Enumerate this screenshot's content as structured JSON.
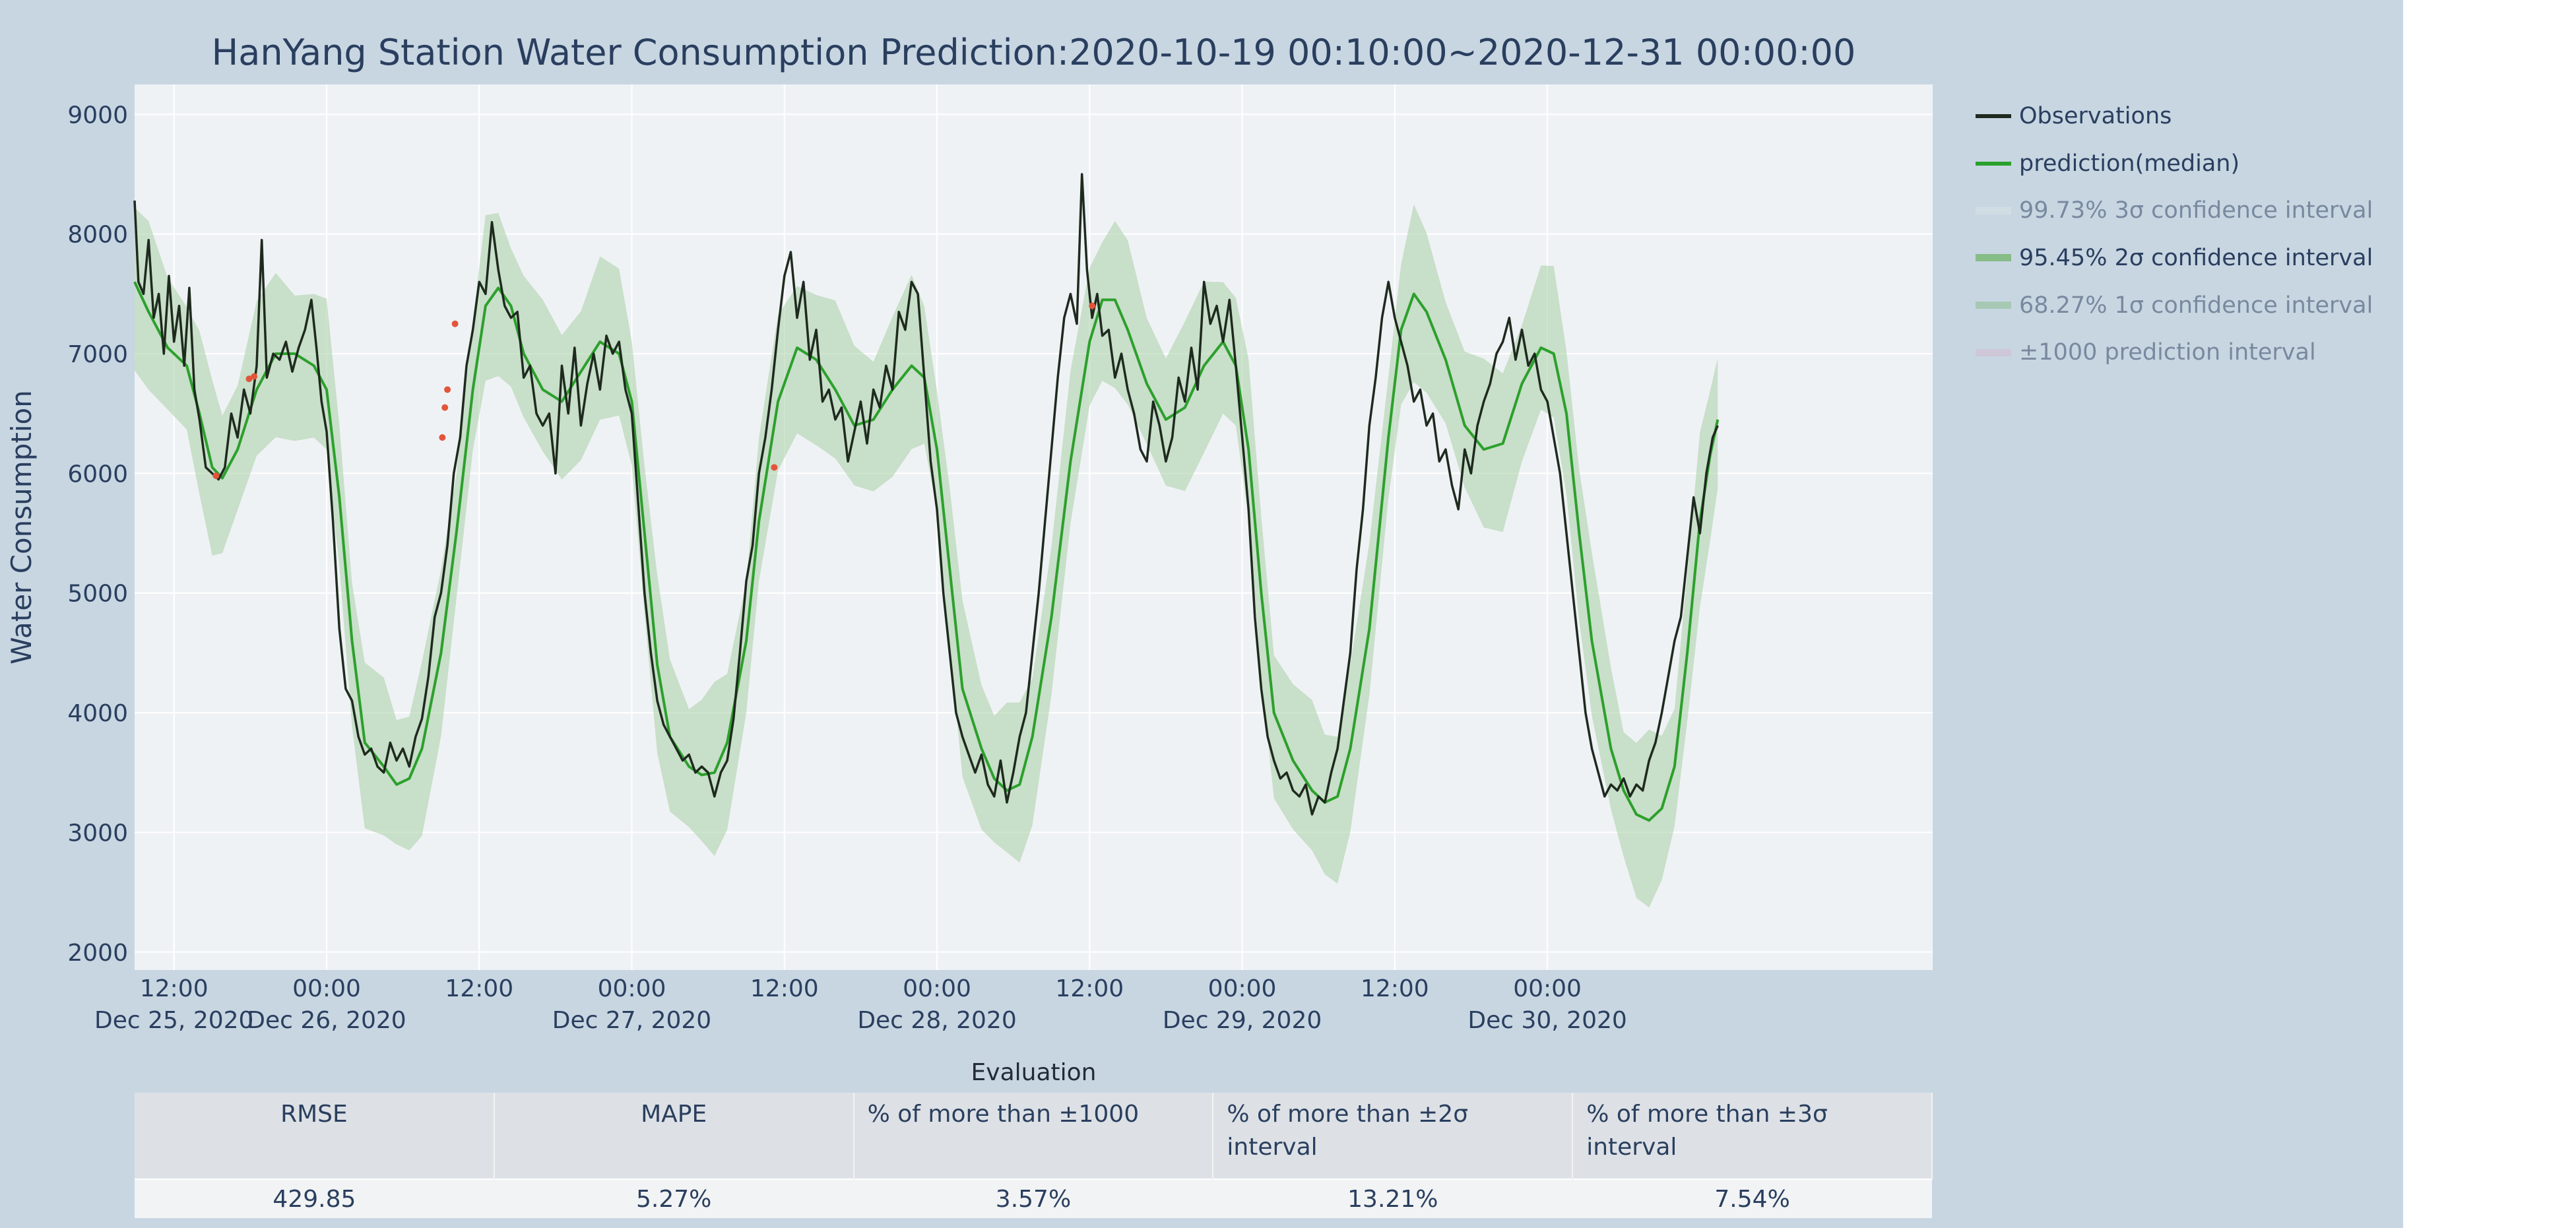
{
  "chart_data": {
    "type": "line",
    "title": "HanYang Station Water Consumption Prediction:2020-10-19 00:10:00~2020-12-31 00:00:00",
    "ylabel": "Water Consumption",
    "xlabel": "",
    "ylim": [
      1850,
      9250
    ],
    "xlim_hours": [
      8.9,
      150.3
    ],
    "grid": true,
    "y_ticks": [
      2000,
      3000,
      4000,
      5000,
      6000,
      7000,
      8000,
      9000
    ],
    "x_ticks": [
      {
        "h": 12,
        "line1": "12:00",
        "line2": "Dec 25, 2020"
      },
      {
        "h": 24,
        "line1": "00:00",
        "line2": "Dec 26, 2020"
      },
      {
        "h": 36,
        "line1": "12:00",
        "line2": ""
      },
      {
        "h": 48,
        "line1": "00:00",
        "line2": "Dec 27, 2020"
      },
      {
        "h": 60,
        "line1": "12:00",
        "line2": ""
      },
      {
        "h": 72,
        "line1": "00:00",
        "line2": "Dec 28, 2020"
      },
      {
        "h": 84,
        "line1": "12:00",
        "line2": ""
      },
      {
        "h": 96,
        "line1": "00:00",
        "line2": "Dec 29, 2020"
      },
      {
        "h": 108,
        "line1": "12:00",
        "line2": ""
      },
      {
        "h": 120,
        "line1": "00:00",
        "line2": "Dec 30, 2020"
      }
    ],
    "x_unit_note": "hours after Dec 25, 2020 00:00",
    "prediction_median": [
      [
        8.9,
        7600
      ],
      [
        10,
        7350
      ],
      [
        11.5,
        7050
      ],
      [
        13,
        6900
      ],
      [
        14,
        6500
      ],
      [
        15,
        6050
      ],
      [
        15.8,
        5960
      ],
      [
        17,
        6200
      ],
      [
        18.5,
        6700
      ],
      [
        20,
        7000
      ],
      [
        21.5,
        7000
      ],
      [
        23,
        6900
      ],
      [
        24,
        6700
      ],
      [
        25,
        5800
      ],
      [
        26,
        4600
      ],
      [
        27,
        3750
      ],
      [
        28.5,
        3550
      ],
      [
        29.5,
        3400
      ],
      [
        30.5,
        3450
      ],
      [
        31.5,
        3700
      ],
      [
        33,
        4500
      ],
      [
        34.2,
        5500
      ],
      [
        35.5,
        6700
      ],
      [
        36.5,
        7400
      ],
      [
        37.5,
        7550
      ],
      [
        38.5,
        7400
      ],
      [
        39.5,
        7000
      ],
      [
        41,
        6700
      ],
      [
        42.5,
        6600
      ],
      [
        44,
        6850
      ],
      [
        45.5,
        7100
      ],
      [
        47,
        7000
      ],
      [
        48,
        6600
      ],
      [
        49,
        5500
      ],
      [
        50,
        4400
      ],
      [
        51,
        3800
      ],
      [
        52.5,
        3550
      ],
      [
        53.5,
        3480
      ],
      [
        54.5,
        3500
      ],
      [
        55.5,
        3750
      ],
      [
        57,
        4600
      ],
      [
        58,
        5600
      ],
      [
        59.5,
        6600
      ],
      [
        61,
        7050
      ],
      [
        62.5,
        6950
      ],
      [
        64,
        6700
      ],
      [
        65.5,
        6400
      ],
      [
        67,
        6450
      ],
      [
        68.5,
        6700
      ],
      [
        70,
        6900
      ],
      [
        71,
        6800
      ],
      [
        72,
        6200
      ],
      [
        73,
        5200
      ],
      [
        74,
        4200
      ],
      [
        75.5,
        3700
      ],
      [
        76.5,
        3450
      ],
      [
        77.5,
        3350
      ],
      [
        78.5,
        3400
      ],
      [
        79.5,
        3800
      ],
      [
        81,
        4800
      ],
      [
        82.5,
        6100
      ],
      [
        84,
        7100
      ],
      [
        85,
        7450
      ],
      [
        86,
        7450
      ],
      [
        87,
        7200
      ],
      [
        88.5,
        6750
      ],
      [
        90,
        6450
      ],
      [
        91.5,
        6550
      ],
      [
        93,
        6900
      ],
      [
        94.5,
        7100
      ],
      [
        95.5,
        6900
      ],
      [
        96.5,
        6200
      ],
      [
        97.5,
        5000
      ],
      [
        98.5,
        4000
      ],
      [
        100,
        3600
      ],
      [
        101.5,
        3350
      ],
      [
        102.5,
        3250
      ],
      [
        103.5,
        3300
      ],
      [
        104.5,
        3700
      ],
      [
        106,
        4700
      ],
      [
        107.5,
        6300
      ],
      [
        108.5,
        7200
      ],
      [
        109.5,
        7500
      ],
      [
        110.5,
        7350
      ],
      [
        112,
        6950
      ],
      [
        113.5,
        6400
      ],
      [
        115,
        6200
      ],
      [
        116.5,
        6250
      ],
      [
        118,
        6750
      ],
      [
        119.5,
        7050
      ],
      [
        120.5,
        7000
      ],
      [
        121.5,
        6500
      ],
      [
        122.5,
        5500
      ],
      [
        123.5,
        4600
      ],
      [
        125,
        3700
      ],
      [
        126,
        3350
      ],
      [
        127,
        3150
      ],
      [
        128,
        3100
      ],
      [
        129,
        3200
      ],
      [
        130,
        3550
      ],
      [
        131,
        4500
      ],
      [
        132,
        5600
      ],
      [
        132.8,
        6150
      ],
      [
        133.4,
        6450
      ]
    ],
    "observations": [
      [
        8.9,
        8280
      ],
      [
        9.2,
        7600
      ],
      [
        9.6,
        7500
      ],
      [
        10,
        7950
      ],
      [
        10.4,
        7300
      ],
      [
        10.8,
        7500
      ],
      [
        11.2,
        7000
      ],
      [
        11.6,
        7650
      ],
      [
        12,
        7100
      ],
      [
        12.4,
        7400
      ],
      [
        12.8,
        6900
      ],
      [
        13.2,
        7550
      ],
      [
        13.6,
        6700
      ],
      [
        14,
        6450
      ],
      [
        14.5,
        6050
      ],
      [
        15,
        6000
      ],
      [
        15.5,
        5950
      ],
      [
        16,
        6050
      ],
      [
        16.5,
        6500
      ],
      [
        17,
        6300
      ],
      [
        17.5,
        6700
      ],
      [
        18,
        6500
      ],
      [
        18.5,
        6900
      ],
      [
        18.9,
        7950
      ],
      [
        19.3,
        6800
      ],
      [
        19.8,
        7000
      ],
      [
        20.3,
        6950
      ],
      [
        20.8,
        7100
      ],
      [
        21.3,
        6850
      ],
      [
        21.8,
        7050
      ],
      [
        22.3,
        7200
      ],
      [
        22.8,
        7450
      ],
      [
        23.2,
        7050
      ],
      [
        23.6,
        6600
      ],
      [
        24,
        6350
      ],
      [
        24.5,
        5600
      ],
      [
        25,
        4700
      ],
      [
        25.5,
        4200
      ],
      [
        26,
        4100
      ],
      [
        26.5,
        3800
      ],
      [
        27,
        3650
      ],
      [
        27.5,
        3700
      ],
      [
        28,
        3550
      ],
      [
        28.5,
        3500
      ],
      [
        29,
        3750
      ],
      [
        29.5,
        3600
      ],
      [
        30,
        3700
      ],
      [
        30.5,
        3550
      ],
      [
        31,
        3800
      ],
      [
        31.5,
        3950
      ],
      [
        32,
        4300
      ],
      [
        32.5,
        4800
      ],
      [
        33,
        5000
      ],
      [
        33.5,
        5400
      ],
      [
        34,
        6000
      ],
      [
        34.5,
        6300
      ],
      [
        35,
        6900
      ],
      [
        35.5,
        7200
      ],
      [
        36,
        7600
      ],
      [
        36.5,
        7500
      ],
      [
        37,
        8100
      ],
      [
        37.5,
        7700
      ],
      [
        38,
        7400
      ],
      [
        38.5,
        7300
      ],
      [
        39,
        7350
      ],
      [
        39.5,
        6800
      ],
      [
        40,
        6900
      ],
      [
        40.5,
        6500
      ],
      [
        41,
        6400
      ],
      [
        41.5,
        6500
      ],
      [
        42,
        6000
      ],
      [
        42.5,
        6900
      ],
      [
        43,
        6500
      ],
      [
        43.5,
        7050
      ],
      [
        44,
        6400
      ],
      [
        44.5,
        6750
      ],
      [
        45,
        7000
      ],
      [
        45.5,
        6700
      ],
      [
        46,
        7150
      ],
      [
        46.5,
        7000
      ],
      [
        47,
        7100
      ],
      [
        47.5,
        6700
      ],
      [
        48,
        6500
      ],
      [
        48.5,
        5750
      ],
      [
        49,
        5000
      ],
      [
        49.5,
        4500
      ],
      [
        50,
        4100
      ],
      [
        50.5,
        3900
      ],
      [
        51,
        3800
      ],
      [
        51.5,
        3700
      ],
      [
        52,
        3600
      ],
      [
        52.5,
        3650
      ],
      [
        53,
        3500
      ],
      [
        53.5,
        3550
      ],
      [
        54,
        3500
      ],
      [
        54.5,
        3300
      ],
      [
        55,
        3500
      ],
      [
        55.5,
        3600
      ],
      [
        56,
        3950
      ],
      [
        56.5,
        4500
      ],
      [
        57,
        5100
      ],
      [
        57.5,
        5400
      ],
      [
        58,
        6000
      ],
      [
        58.5,
        6300
      ],
      [
        59,
        6700
      ],
      [
        59.5,
        7200
      ],
      [
        60,
        7650
      ],
      [
        60.5,
        7850
      ],
      [
        61,
        7300
      ],
      [
        61.5,
        7600
      ],
      [
        62,
        6950
      ],
      [
        62.5,
        7200
      ],
      [
        63,
        6600
      ],
      [
        63.5,
        6700
      ],
      [
        64,
        6450
      ],
      [
        64.5,
        6550
      ],
      [
        65,
        6100
      ],
      [
        65.5,
        6350
      ],
      [
        66,
        6600
      ],
      [
        66.5,
        6250
      ],
      [
        67,
        6700
      ],
      [
        67.5,
        6550
      ],
      [
        68,
        6900
      ],
      [
        68.5,
        6700
      ],
      [
        69,
        7350
      ],
      [
        69.5,
        7200
      ],
      [
        70,
        7600
      ],
      [
        70.5,
        7500
      ],
      [
        71,
        6800
      ],
      [
        71.5,
        6100
      ],
      [
        72,
        5700
      ],
      [
        72.5,
        5000
      ],
      [
        73,
        4500
      ],
      [
        73.5,
        4000
      ],
      [
        74,
        3800
      ],
      [
        74.5,
        3650
      ],
      [
        75,
        3500
      ],
      [
        75.5,
        3650
      ],
      [
        76,
        3400
      ],
      [
        76.5,
        3300
      ],
      [
        77,
        3600
      ],
      [
        77.5,
        3250
      ],
      [
        78,
        3500
      ],
      [
        78.5,
        3800
      ],
      [
        79,
        4000
      ],
      [
        79.5,
        4500
      ],
      [
        80,
        5000
      ],
      [
        80.5,
        5600
      ],
      [
        81,
        6200
      ],
      [
        81.5,
        6800
      ],
      [
        82,
        7300
      ],
      [
        82.5,
        7500
      ],
      [
        83,
        7250
      ],
      [
        83.4,
        8500
      ],
      [
        83.8,
        7700
      ],
      [
        84.2,
        7300
      ],
      [
        84.6,
        7500
      ],
      [
        85,
        7150
      ],
      [
        85.5,
        7200
      ],
      [
        86,
        6800
      ],
      [
        86.5,
        7000
      ],
      [
        87,
        6700
      ],
      [
        87.5,
        6500
      ],
      [
        88,
        6200
      ],
      [
        88.5,
        6100
      ],
      [
        89,
        6600
      ],
      [
        89.5,
        6400
      ],
      [
        90,
        6100
      ],
      [
        90.5,
        6300
      ],
      [
        91,
        6800
      ],
      [
        91.5,
        6600
      ],
      [
        92,
        7050
      ],
      [
        92.5,
        6700
      ],
      [
        93,
        7600
      ],
      [
        93.5,
        7250
      ],
      [
        94,
        7400
      ],
      [
        94.5,
        7100
      ],
      [
        95,
        7450
      ],
      [
        95.5,
        6900
      ],
      [
        96,
        6300
      ],
      [
        96.5,
        5700
      ],
      [
        97,
        4800
      ],
      [
        97.5,
        4200
      ],
      [
        98,
        3800
      ],
      [
        98.5,
        3600
      ],
      [
        99,
        3450
      ],
      [
        99.5,
        3500
      ],
      [
        100,
        3350
      ],
      [
        100.5,
        3300
      ],
      [
        101,
        3400
      ],
      [
        101.5,
        3150
      ],
      [
        102,
        3300
      ],
      [
        102.5,
        3250
      ],
      [
        103,
        3500
      ],
      [
        103.5,
        3700
      ],
      [
        104,
        4100
      ],
      [
        104.5,
        4500
      ],
      [
        105,
        5200
      ],
      [
        105.5,
        5700
      ],
      [
        106,
        6400
      ],
      [
        106.5,
        6800
      ],
      [
        107,
        7300
      ],
      [
        107.5,
        7600
      ],
      [
        108,
        7300
      ],
      [
        108.5,
        7100
      ],
      [
        109,
        6900
      ],
      [
        109.5,
        6600
      ],
      [
        110,
        6700
      ],
      [
        110.5,
        6400
      ],
      [
        111,
        6500
      ],
      [
        111.5,
        6100
      ],
      [
        112,
        6200
      ],
      [
        112.5,
        5900
      ],
      [
        113,
        5700
      ],
      [
        113.5,
        6200
      ],
      [
        114,
        6000
      ],
      [
        114.5,
        6400
      ],
      [
        115,
        6600
      ],
      [
        115.5,
        6750
      ],
      [
        116,
        7000
      ],
      [
        116.5,
        7100
      ],
      [
        117,
        7300
      ],
      [
        117.5,
        6950
      ],
      [
        118,
        7200
      ],
      [
        118.5,
        6900
      ],
      [
        119,
        7000
      ],
      [
        119.5,
        6700
      ],
      [
        120,
        6600
      ],
      [
        120.5,
        6300
      ],
      [
        121,
        6000
      ],
      [
        121.5,
        5500
      ],
      [
        122,
        5000
      ],
      [
        122.5,
        4500
      ],
      [
        123,
        4000
      ],
      [
        123.5,
        3700
      ],
      [
        124,
        3500
      ],
      [
        124.5,
        3300
      ],
      [
        125,
        3400
      ],
      [
        125.5,
        3350
      ],
      [
        126,
        3450
      ],
      [
        126.5,
        3300
      ],
      [
        127,
        3400
      ],
      [
        127.5,
        3350
      ],
      [
        128,
        3600
      ],
      [
        128.5,
        3750
      ],
      [
        129,
        4000
      ],
      [
        129.5,
        4300
      ],
      [
        130,
        4600
      ],
      [
        130.5,
        4800
      ],
      [
        131,
        5300
      ],
      [
        131.5,
        5800
      ],
      [
        132,
        5500
      ],
      [
        132.5,
        6000
      ],
      [
        133,
        6300
      ],
      [
        133.4,
        6400
      ]
    ],
    "band_half_width": 620,
    "anomaly_points": [
      [
        15.3,
        5980
      ],
      [
        17.9,
        6790
      ],
      [
        18.3,
        6810
      ],
      [
        33.1,
        6300
      ],
      [
        33.3,
        6550
      ],
      [
        33.5,
        6700
      ],
      [
        34.1,
        7250
      ],
      [
        59.2,
        6050
      ],
      [
        84.2,
        7400
      ]
    ],
    "colors": {
      "observations": "#1e2a1e",
      "median": "#2ca02c",
      "band": "#a8d0a4",
      "anomaly": "#e2553a",
      "plot_bg": "#eff2f5",
      "page_bg": "#c8d6e2",
      "text": "#2a3f5f"
    }
  },
  "legend": {
    "items": [
      {
        "label": "Observations",
        "color": "#1e2a1e",
        "dim": false,
        "thick": false
      },
      {
        "label": "prediction(median)",
        "color": "#2ca02c",
        "dim": false,
        "thick": false
      },
      {
        "label": "99.73% 3σ confidence interval",
        "color": "#d8e6e6",
        "dim": true,
        "thick": true
      },
      {
        "label": "95.45% 2σ confidence interval",
        "color": "#86bc86",
        "dim": false,
        "thick": true
      },
      {
        "label": "68.27% 1σ confidence interval",
        "color": "#86bc86",
        "dim": true,
        "thick": true
      },
      {
        "label": "±1000 prediction interval",
        "color": "#d4b8cc",
        "dim": true,
        "thick": true
      }
    ]
  },
  "evaluation": {
    "title": "Evaluation",
    "headers": [
      "RMSE",
      "MAPE",
      "% of more than ±1000",
      "% of more than ±2σ interval",
      "% of more than ±3σ interval"
    ],
    "values": [
      "429.85",
      "5.27%",
      "3.57%",
      "13.21%",
      "7.54%"
    ]
  }
}
